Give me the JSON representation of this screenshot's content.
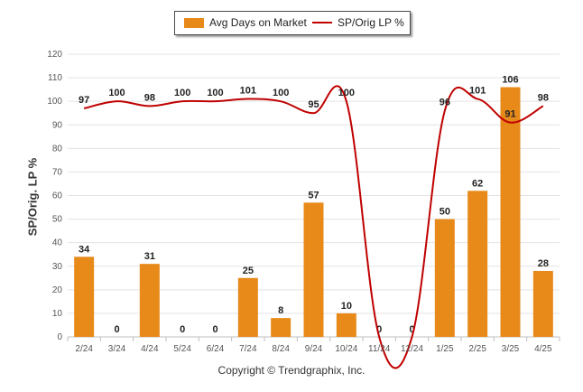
{
  "chart_data": {
    "type": "bar+line",
    "categories": [
      "2/24",
      "3/24",
      "4/24",
      "5/24",
      "6/24",
      "7/24",
      "8/24",
      "9/24",
      "10/24",
      "11/24",
      "12/24",
      "1/25",
      "2/25",
      "3/25",
      "4/25"
    ],
    "series": [
      {
        "name": "Avg Days on Market",
        "kind": "bar",
        "color": "#E88A1A",
        "values": [
          34,
          0,
          31,
          0,
          0,
          25,
          8,
          57,
          10,
          0,
          0,
          50,
          62,
          106,
          28
        ]
      },
      {
        "name": "SP/Orig LP %",
        "kind": "line",
        "color": "#C00000",
        "values": [
          97,
          100,
          98,
          100,
          100,
          101,
          100,
          95,
          100,
          0,
          0,
          96,
          101,
          91,
          98
        ],
        "labels": [
          "97",
          "100",
          "98",
          "100",
          "100",
          "101",
          "100",
          "95",
          "100",
          "",
          "",
          "96",
          "101",
          "91",
          "98"
        ]
      }
    ],
    "bar_labels": [
      "34",
      "0",
      "31",
      "0",
      "0",
      "25",
      "8",
      "57",
      "10",
      "0",
      "0",
      "50",
      "62",
      "106",
      "28"
    ],
    "ylabel": "SP/Orig. LP %",
    "ylim": [
      0,
      120
    ],
    "yticks": [
      "0",
      "10",
      "20",
      "30",
      "40",
      "50",
      "60",
      "70",
      "80",
      "90",
      "100",
      "110",
      "120"
    ],
    "grid": true,
    "legend": "top-center"
  },
  "footer": {
    "copyright": "Copyright © Trendgraphix, Inc."
  }
}
